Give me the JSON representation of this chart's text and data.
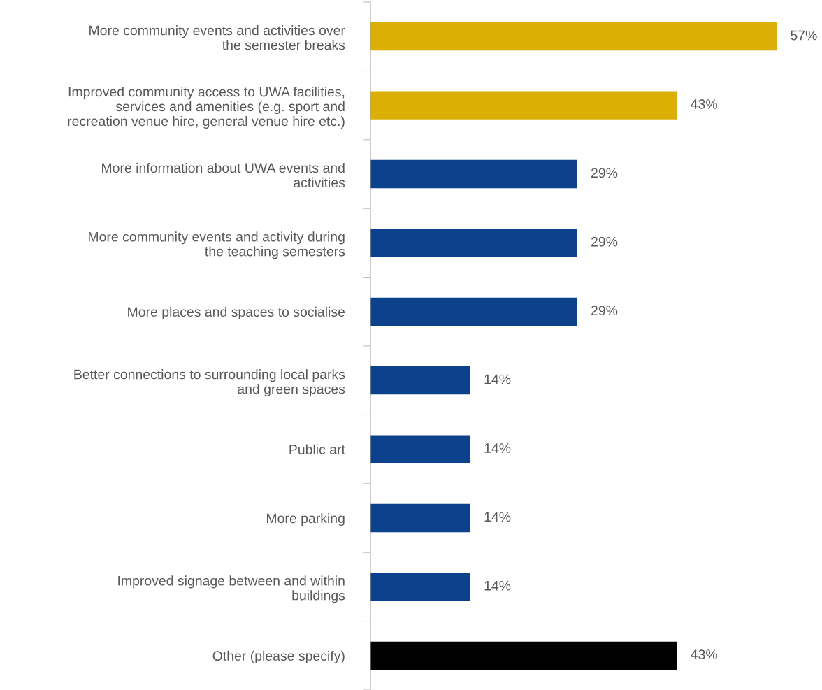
{
  "chart_data": {
    "type": "bar",
    "orientation": "horizontal",
    "data_labels": true,
    "tick_labels": "y",
    "grid": false,
    "legend": false,
    "categories": [
      "More community events and activities over\nthe semester breaks",
      "Improved community access to UWA facilities,\nservices and amenities (e.g. sport and\nrecreation venue hire, general venue hire etc.)",
      "More information about UWA events and\nactivities",
      "More community events and activity during\nthe teaching semesters",
      "More places and spaces to socialise",
      "Better connections to surrounding local parks\nand green spaces",
      "Public art",
      "More parking",
      "Improved signage between and within\nbuildings",
      "Other (please specify)"
    ],
    "values": [
      57,
      43,
      29,
      29,
      29,
      14,
      14,
      14,
      14,
      43
    ],
    "value_labels": [
      "57%",
      "43%",
      "29%",
      "29%",
      "29%",
      "14%",
      "14%",
      "14%",
      "14%",
      "43%"
    ],
    "colors": [
      "#dcaf07",
      "#dcaf07",
      "#0c428c",
      "#0c428c",
      "#0c428c",
      "#0c428c",
      "#0c428c",
      "#0c428c",
      "#0c428c",
      "#000000"
    ]
  }
}
